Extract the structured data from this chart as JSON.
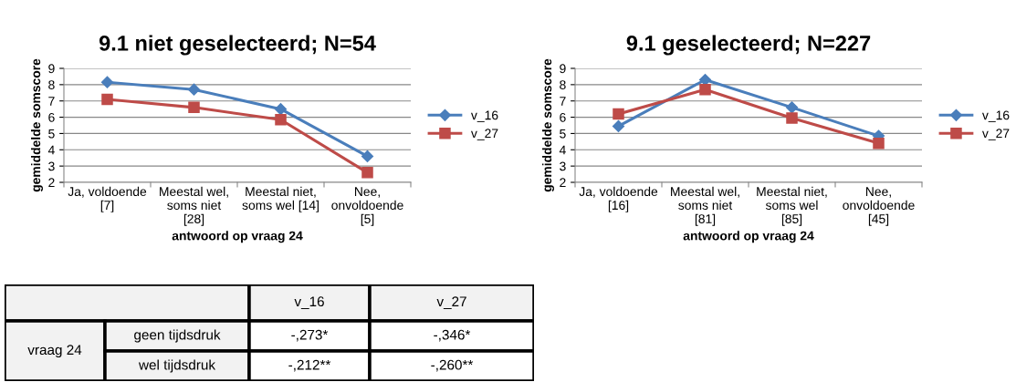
{
  "chart_data": [
    {
      "type": "line",
      "title": "9.1 niet geselecteerd; N=54",
      "xlabel": "antwoord op vraag 24",
      "ylabel": "gemiddelde somscore",
      "categories": [
        "Ja, voldoende\n[7]",
        "Meestal wel,\nsoms niet\n[28]",
        "Meestal niet,\nsoms wel [14]",
        "Nee,\nonvoldoende\n[5]"
      ],
      "series": [
        {
          "name": "v_16",
          "color": "#4a7ebb",
          "marker": "diamond",
          "values": [
            8.15,
            7.7,
            6.5,
            3.6
          ]
        },
        {
          "name": "v_27",
          "color": "#be4b48",
          "marker": "square",
          "values": [
            7.1,
            6.6,
            5.85,
            2.6
          ]
        }
      ],
      "ylim": [
        2,
        9
      ],
      "yticks": [
        2,
        3,
        4,
        5,
        6,
        7,
        8,
        9
      ],
      "grid": "y",
      "legend": "right"
    },
    {
      "type": "line",
      "title": "9.1 geselecteerd; N=227",
      "xlabel": "antwoord op vraag 24",
      "ylabel": "gemiddelde somscore",
      "categories": [
        "Ja, voldoende\n[16]",
        "Meestal wel,\nsoms niet\n[81]",
        "Meestal niet,\nsoms wel\n[85]",
        "Nee,\nonvoldoende\n[45]"
      ],
      "series": [
        {
          "name": "v_16",
          "color": "#4a7ebb",
          "marker": "diamond",
          "values": [
            5.45,
            8.3,
            6.6,
            4.85
          ]
        },
        {
          "name": "v_27",
          "color": "#be4b48",
          "marker": "square",
          "values": [
            6.2,
            7.7,
            5.95,
            4.4
          ]
        }
      ],
      "ylim": [
        2,
        9
      ],
      "yticks": [
        2,
        3,
        4,
        5,
        6,
        7,
        8,
        9
      ],
      "grid": "y",
      "legend": "right"
    },
    {
      "type": "other",
      "annotations": [
        "v_16",
        "v_27",
        "vraag 24",
        "geen tijdsdruk",
        "wel tijdsdruk",
        "-,273*",
        "-,346*",
        "-,212**",
        "-,260**"
      ]
    }
  ]
}
